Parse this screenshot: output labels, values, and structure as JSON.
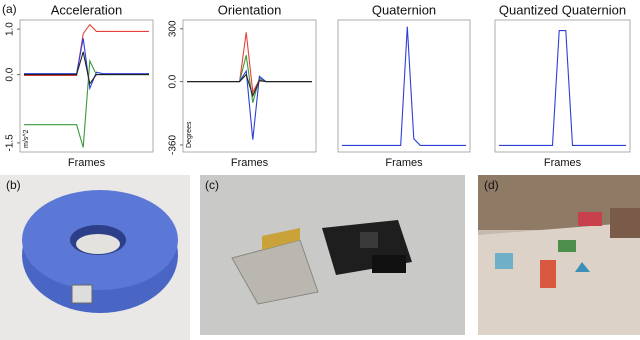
{
  "figure_label": "(a)",
  "chart_data": [
    {
      "type": "line",
      "title": "Acceleration",
      "x_label": "Frames",
      "y_label": "m/s^2",
      "ylim": [
        -1.7,
        1.2
      ],
      "yticks": [
        {
          "value": 1,
          "label": "1.0"
        },
        {
          "value": 0,
          "label": "0.0"
        },
        -1.5
      ],
      "series": [
        {
          "color": "#e8413c",
          "values": [
            -0.02,
            -0.02,
            -0.02,
            -0.02,
            -0.02,
            -0.02,
            -0.02,
            -0.02,
            -0.02,
            0.9,
            1.1,
            0.95,
            0.95,
            0.95,
            0.95,
            0.95,
            0.95,
            0.95,
            0.95,
            0.95
          ]
        },
        {
          "color": "#2b3fd6",
          "values": [
            0.02,
            0.02,
            0.02,
            0.02,
            0.02,
            0.02,
            0.02,
            0.02,
            0.02,
            0.8,
            -0.3,
            0.05,
            0.02,
            0.02,
            0.02,
            0.02,
            0.02,
            0.02,
            0.02,
            0.02
          ]
        },
        {
          "color": "#3a9a3a",
          "values": [
            -1.1,
            -1.1,
            -1.1,
            -1.1,
            -1.1,
            -1.1,
            -1.1,
            -1.1,
            -1.1,
            -1.6,
            0.3,
            0.0,
            0.0,
            0.0,
            0.0,
            0.0,
            0.0,
            0.0,
            0.0,
            0.0
          ]
        },
        {
          "color": "#222222",
          "values": [
            0,
            0,
            0,
            0,
            0,
            0,
            0,
            0,
            0,
            0.5,
            -0.2,
            0,
            0,
            0,
            0,
            0,
            0,
            0,
            0,
            0
          ]
        }
      ]
    },
    {
      "type": "line",
      "title": "Orientation",
      "x_label": "Frames",
      "y_label": "Degrees",
      "ylim": [
        -400,
        350
      ],
      "yticks": [
        300,
        {
          "value": 0,
          "label": "0.0"
        },
        -360
      ],
      "series": [
        {
          "color": "#e8413c",
          "values": [
            0,
            0,
            0,
            0,
            0,
            0,
            0,
            0,
            0,
            280,
            -60,
            10,
            0,
            0,
            0,
            0,
            0,
            0,
            0,
            0
          ]
        },
        {
          "color": "#3a9a3a",
          "values": [
            0,
            0,
            0,
            0,
            0,
            0,
            0,
            0,
            0,
            150,
            -120,
            20,
            0,
            0,
            0,
            0,
            0,
            0,
            0,
            0
          ]
        },
        {
          "color": "#2b3fd6",
          "values": [
            0,
            0,
            0,
            0,
            0,
            0,
            0,
            0,
            0,
            60,
            -330,
            30,
            0,
            0,
            0,
            0,
            0,
            0,
            0,
            0
          ]
        },
        {
          "color": "#222222",
          "values": [
            0,
            0,
            0,
            0,
            0,
            0,
            0,
            0,
            0,
            40,
            -80,
            5,
            0,
            0,
            0,
            0,
            0,
            0,
            0,
            0
          ]
        }
      ]
    },
    {
      "type": "line",
      "title": "Quaternion",
      "x_label": "Frames",
      "ylim": [
        0,
        1
      ],
      "series": [
        {
          "color": "#2b3fd6",
          "values": [
            0.05,
            0.05,
            0.05,
            0.05,
            0.05,
            0.05,
            0.05,
            0.05,
            0.05,
            0.05,
            0.95,
            0.1,
            0.05,
            0.05,
            0.05,
            0.05,
            0.05,
            0.05,
            0.05,
            0.05
          ]
        }
      ]
    },
    {
      "type": "line",
      "title": "Quantized Quaternion",
      "x_label": "Frames",
      "ylim": [
        0,
        1
      ],
      "series": [
        {
          "color": "#2b3fd6",
          "values": [
            0.05,
            0.05,
            0.05,
            0.05,
            0.05,
            0.05,
            0.05,
            0.05,
            0.05,
            0.92,
            0.92,
            0.05,
            0.05,
            0.05,
            0.05,
            0.05,
            0.05,
            0.05,
            0.05,
            0.05
          ]
        }
      ]
    }
  ],
  "photo_labels": [
    "(b)",
    "(c)",
    "(d)"
  ]
}
